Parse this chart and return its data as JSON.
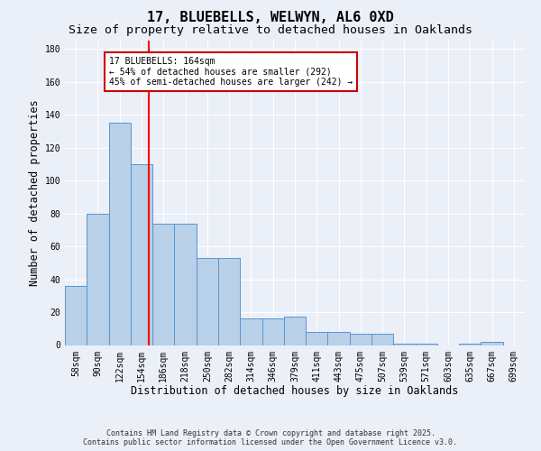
{
  "title": "17, BLUEBELLS, WELWYN, AL6 0XD",
  "subtitle": "Size of property relative to detached houses in Oaklands",
  "xlabel": "Distribution of detached houses by size in Oaklands",
  "ylabel": "Number of detached properties",
  "bar_labels": [
    "58sqm",
    "90sqm",
    "122sqm",
    "154sqm",
    "186sqm",
    "218sqm",
    "250sqm",
    "282sqm",
    "314sqm",
    "346sqm",
    "379sqm",
    "411sqm",
    "443sqm",
    "475sqm",
    "507sqm",
    "539sqm",
    "571sqm",
    "603sqm",
    "635sqm",
    "667sqm",
    "699sqm"
  ],
  "bar_values": [
    36,
    80,
    135,
    110,
    74,
    74,
    53,
    53,
    16,
    16,
    17,
    8,
    8,
    7,
    7,
    1,
    1,
    0,
    1,
    2,
    0
  ],
  "bar_color": "#b8d0e8",
  "bar_edge_color": "#5a96ce",
  "ylim": [
    0,
    185
  ],
  "yticks": [
    0,
    20,
    40,
    60,
    80,
    100,
    120,
    140,
    160,
    180
  ],
  "annotation_text": "17 BLUEBELLS: 164sqm\n← 54% of detached houses are smaller (292)\n45% of semi-detached houses are larger (242) →",
  "annotation_box_color": "#ffffff",
  "annotation_box_edge": "#cc0000",
  "footer_line1": "Contains HM Land Registry data © Crown copyright and database right 2025.",
  "footer_line2": "Contains public sector information licensed under the Open Government Licence v3.0.",
  "background_color": "#eaeff8",
  "grid_color": "#ffffff",
  "title_fontsize": 11,
  "subtitle_fontsize": 9.5,
  "axis_label_fontsize": 8.5,
  "tick_fontsize": 7,
  "footer_fontsize": 6
}
